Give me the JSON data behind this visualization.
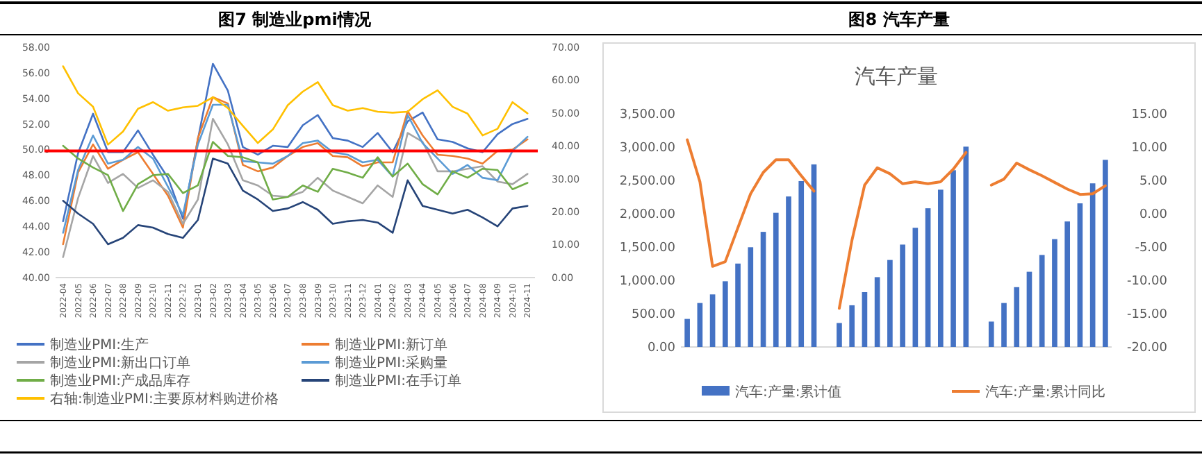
{
  "chart_data": [
    {
      "type": "line",
      "title": "图7  制造业pmi情况",
      "categories": [
        "2022-04",
        "2022-05",
        "2022-06",
        "2022-07",
        "2022-08",
        "2022-09",
        "2022-10",
        "2022-11",
        "2022-12",
        "2023-01",
        "2023-02",
        "2023-03",
        "2023-04",
        "2023-05",
        "2023-06",
        "2023-07",
        "2023-08",
        "2023-09",
        "2023-10",
        "2023-11",
        "2023-12",
        "2024-01",
        "2024-02",
        "2024-03",
        "2024-04",
        "2024-05",
        "2024-06",
        "2024-07",
        "2024-08",
        "2024-09",
        "2024-10",
        "2024-11"
      ],
      "series": [
        {
          "name": "制造业PMI:生产",
          "color": "#4472c4",
          "values": [
            44.4,
            49.7,
            52.8,
            49.8,
            49.8,
            51.5,
            49.6,
            47.8,
            44.6,
            50.8,
            56.7,
            54.6,
            50.2,
            49.6,
            50.3,
            50.2,
            51.9,
            52.7,
            50.9,
            50.7,
            50.2,
            51.3,
            49.8,
            52.2,
            52.9,
            50.8,
            50.6,
            50.1,
            49.8,
            51.2,
            52.0,
            52.4
          ]
        },
        {
          "name": "制造业PMI:新订单",
          "color": "#ed7d31",
          "values": [
            42.6,
            48.2,
            50.4,
            48.5,
            49.2,
            49.8,
            48.1,
            46.4,
            43.9,
            50.9,
            54.1,
            53.6,
            48.8,
            48.3,
            48.6,
            49.5,
            50.2,
            50.5,
            49.5,
            49.4,
            48.7,
            49.0,
            49.0,
            53.0,
            51.1,
            49.6,
            49.5,
            49.3,
            48.9,
            49.9,
            50.0,
            50.8
          ]
        },
        {
          "name": "制造业PMI:新出口订单",
          "color": "#a5a5a5",
          "values": [
            41.6,
            46.2,
            49.5,
            47.4,
            48.1,
            47.0,
            47.6,
            46.7,
            44.2,
            46.1,
            52.4,
            50.4,
            47.6,
            47.2,
            46.4,
            46.3,
            46.7,
            47.8,
            46.8,
            46.3,
            45.8,
            47.2,
            46.3,
            51.3,
            50.6,
            48.3,
            48.3,
            48.5,
            48.7,
            47.5,
            47.3,
            48.1
          ]
        },
        {
          "name": "制造业PMI:采购量",
          "color": "#5b9bd5",
          "values": [
            43.5,
            48.4,
            51.1,
            48.9,
            49.2,
            50.2,
            49.3,
            47.1,
            44.9,
            50.4,
            53.5,
            53.5,
            49.1,
            49.0,
            48.9,
            49.5,
            50.5,
            50.7,
            49.8,
            49.6,
            49.0,
            49.2,
            47.9,
            52.7,
            50.5,
            49.3,
            48.1,
            48.8,
            47.8,
            47.6,
            49.9,
            51.0
          ]
        },
        {
          "name": "制造业PMI:产成品库存",
          "color": "#70ad47",
          "values": [
            50.3,
            49.3,
            48.6,
            48.0,
            45.2,
            47.3,
            48.0,
            48.1,
            46.6,
            47.2,
            50.6,
            49.5,
            49.4,
            49.0,
            46.1,
            46.3,
            47.2,
            46.7,
            48.5,
            48.2,
            47.8,
            49.4,
            47.9,
            48.9,
            47.3,
            46.5,
            48.3,
            47.8,
            48.5,
            48.4,
            46.9,
            47.4
          ]
        },
        {
          "name": "制造业PMI:在手订单",
          "color": "#264478",
          "values": [
            46.0,
            45.0,
            44.2,
            42.6,
            43.1,
            44.1,
            43.9,
            43.4,
            43.1,
            44.5,
            49.3,
            48.9,
            46.8,
            46.1,
            45.2,
            45.4,
            45.9,
            45.3,
            44.2,
            44.4,
            44.5,
            44.3,
            43.5,
            47.6,
            45.6,
            45.3,
            45.0,
            45.3,
            44.7,
            44.0,
            45.4,
            45.6
          ]
        },
        {
          "name": "右轴:制造业PMI:主要原材料购进价格",
          "color": "#ffc000",
          "axis": "y2",
          "values": [
            64.2,
            56.0,
            51.9,
            40.4,
            44.4,
            51.3,
            53.3,
            50.7,
            51.7,
            52.2,
            54.8,
            51.5,
            46.1,
            40.9,
            45.0,
            52.4,
            56.5,
            59.4,
            52.4,
            50.7,
            51.5,
            50.4,
            50.1,
            50.4,
            54.2,
            56.9,
            51.9,
            49.8,
            43.2,
            45.2,
            53.3,
            49.9
          ]
        }
      ],
      "ylim": [
        40,
        58
      ],
      "yticks": [
        {
          "value": 40,
          "label": "40.00"
        },
        {
          "value": 42,
          "label": "42.00"
        },
        {
          "value": 44,
          "label": "44.00"
        },
        {
          "value": 46,
          "label": "46.00"
        },
        {
          "value": 48,
          "label": "48.00"
        },
        {
          "value": 50,
          "label": "50.00"
        },
        {
          "value": 52,
          "label": "52.00"
        },
        {
          "value": 54,
          "label": "54.00"
        },
        {
          "value": 56,
          "label": "56.00"
        },
        {
          "value": 58,
          "label": "58.00"
        }
      ],
      "y2lim": [
        0,
        70
      ],
      "y2ticks": [
        {
          "value": 0,
          "label": "0.00"
        },
        {
          "value": 10,
          "label": "10.00"
        },
        {
          "value": 20,
          "label": "20.00"
        },
        {
          "value": 30,
          "label": "30.00"
        },
        {
          "value": 40,
          "label": "40.00"
        },
        {
          "value": 50,
          "label": "50.00"
        },
        {
          "value": 60,
          "label": "60.00"
        },
        {
          "value": 70,
          "label": "70.00"
        }
      ],
      "ref_lines": [
        {
          "axis": "y",
          "value": 49.9,
          "color": "#ff0000"
        }
      ],
      "legend": "bottom"
    },
    {
      "type": "bar",
      "title": "图8 汽车产量",
      "subtitle": "汽车产量",
      "categories": [
        null,
        null,
        null,
        null,
        null,
        null,
        null,
        null,
        null,
        null,
        null,
        null,
        null,
        null,
        null,
        null,
        null,
        null,
        null,
        null,
        null,
        null,
        null,
        null,
        null,
        null,
        null,
        null,
        null,
        null,
        null,
        null,
        null,
        null
      ],
      "series": [
        {
          "name": "汽车:产量:累计值",
          "color": "#4472c4",
          "values": [
            421,
            660,
            789,
            986,
            1252,
            1497,
            1728,
            2014,
            2259,
            2490,
            2741,
            null,
            360,
            626,
            823,
            1048,
            1306,
            1537,
            1789,
            2082,
            2361,
            2653,
            3007,
            null,
            381,
            660,
            898,
            1129,
            1381,
            1619,
            1884,
            2156,
            2456,
            2809
          ]
        },
        {
          "name": "汽车:产量:累计同比",
          "color": "#ed7d31",
          "type": "line",
          "axis": "y2",
          "values": [
            11.1,
            4.8,
            -7.9,
            -7.2,
            -2.1,
            3.0,
            6.2,
            8.1,
            8.1,
            5.7,
            3.4,
            null,
            -14.2,
            -4.0,
            4.3,
            6.9,
            6.0,
            4.5,
            4.8,
            4.5,
            4.8,
            6.7,
            9.2,
            null,
            4.3,
            5.2,
            7.6,
            6.6,
            5.7,
            4.7,
            3.7,
            2.9,
            3.0,
            4.2
          ]
        }
      ],
      "ylim": [
        0,
        3500
      ],
      "yticks": [
        {
          "value": 0,
          "label": "0.00"
        },
        {
          "value": 500,
          "label": "500.00"
        },
        {
          "value": 1000,
          "label": "1,000.00"
        },
        {
          "value": 1500,
          "label": "1,500.00"
        },
        {
          "value": 2000,
          "label": "2,000.00"
        },
        {
          "value": 2500,
          "label": "2,500.00"
        },
        {
          "value": 3000,
          "label": "3,000.00"
        },
        {
          "value": 3500,
          "label": "3,500.00"
        }
      ],
      "y2lim": [
        -20,
        15
      ],
      "y2ticks": [
        {
          "value": -20,
          "label": "-20.00"
        },
        {
          "value": -15,
          "label": "-15.00"
        },
        {
          "value": -10,
          "label": "-10.00"
        },
        {
          "value": -5,
          "label": "-5.00"
        },
        {
          "value": 0,
          "label": "0.00"
        },
        {
          "value": 5,
          "label": "5.00"
        },
        {
          "value": 10,
          "label": "10.00"
        },
        {
          "value": 15,
          "label": "15.00"
        }
      ],
      "legend": "bottom"
    }
  ]
}
